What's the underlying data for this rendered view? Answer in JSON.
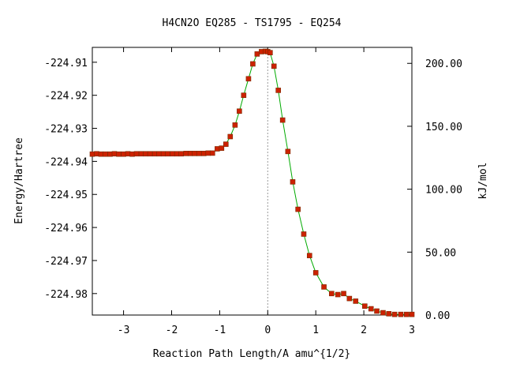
{
  "chart_data": {
    "type": "line",
    "title": "H4CN2O   EQ285 - TS1795 - EQ254",
    "xlabel": "Reaction Path Length/A amu^{1/2}",
    "ylabel": "Energy/Hartree",
    "y2label": "kJ/mol",
    "xlim": [
      -3.65,
      3.0
    ],
    "ylim": [
      -224.9865,
      -224.9055
    ],
    "y2lim": [
      0.0,
      212.7
    ],
    "x_ticks": [
      -3,
      -2,
      -1,
      0,
      1,
      2,
      3
    ],
    "y_ticks": [
      -224.91,
      -224.92,
      -224.93,
      -224.94,
      -224.95,
      -224.96,
      -224.97,
      -224.98
    ],
    "y2_ticks": [
      200.0,
      150.0,
      100.0,
      50.0,
      0.0
    ],
    "x_tick_labels": [
      "-3",
      "-2",
      "-1",
      "0",
      "1",
      "2",
      "3"
    ],
    "y_tick_labels": [
      "-224.91",
      "-224.92",
      "-224.93",
      "-224.94",
      "-224.95",
      "-224.96",
      "-224.97",
      "-224.98"
    ],
    "y2_tick_labels": [
      "200.00",
      "150.00",
      "100.00",
      "50.00",
      "0.00"
    ],
    "grid": false,
    "ts_marker_x": 0.0,
    "colors": {
      "line": "#00aa00",
      "marker": "#cc2200",
      "ts_line": "#999999"
    },
    "series": [
      {
        "x": [
          -3.65,
          -3.56,
          -3.47,
          -3.38,
          -3.28,
          -3.19,
          -3.1,
          -3.0,
          -2.91,
          -2.82,
          -2.73,
          -2.63,
          -2.54,
          -2.45,
          -2.35,
          -2.26,
          -2.17,
          -2.08,
          -1.98,
          -1.89,
          -1.8,
          -1.7,
          -1.61,
          -1.52,
          -1.43,
          -1.33,
          -1.24,
          -1.15,
          -1.05,
          -0.96,
          -0.87,
          -0.78,
          -0.68,
          -0.59,
          -0.5,
          -0.4,
          -0.31,
          -0.22,
          -0.13,
          -0.05,
          0.0,
          0.05,
          0.13,
          0.22,
          0.31,
          0.42,
          0.52,
          0.63,
          0.75,
          0.87,
          1.0,
          1.17,
          1.33,
          1.46,
          1.58,
          1.7,
          1.83,
          2.02,
          2.15,
          2.27,
          2.4,
          2.52,
          2.64,
          2.77,
          2.89,
          3.0
        ],
        "y": [
          -224.9378,
          -224.9377,
          -224.9378,
          -224.9378,
          -224.9378,
          -224.9377,
          -224.9378,
          -224.9378,
          -224.9377,
          -224.9378,
          -224.9377,
          -224.9377,
          -224.9377,
          -224.9377,
          -224.9377,
          -224.9377,
          -224.9377,
          -224.9377,
          -224.9377,
          -224.9377,
          -224.9377,
          -224.9376,
          -224.9376,
          -224.9376,
          -224.9376,
          -224.9376,
          -224.9375,
          -224.9375,
          -224.9362,
          -224.936,
          -224.9348,
          -224.9325,
          -224.929,
          -224.9248,
          -224.92,
          -224.915,
          -224.9105,
          -224.9075,
          -224.9068,
          -224.9067,
          -224.9068,
          -224.9071,
          -224.9112,
          -224.9185,
          -224.9275,
          -224.937,
          -224.9462,
          -224.9545,
          -224.962,
          -224.9685,
          -224.9737,
          -224.978,
          -224.98,
          -224.9803,
          -224.98,
          -224.9815,
          -224.9823,
          -224.9838,
          -224.9846,
          -224.9853,
          -224.9858,
          -224.9861,
          -224.9863,
          -224.9863,
          -224.9863,
          -224.9863
        ]
      }
    ]
  }
}
